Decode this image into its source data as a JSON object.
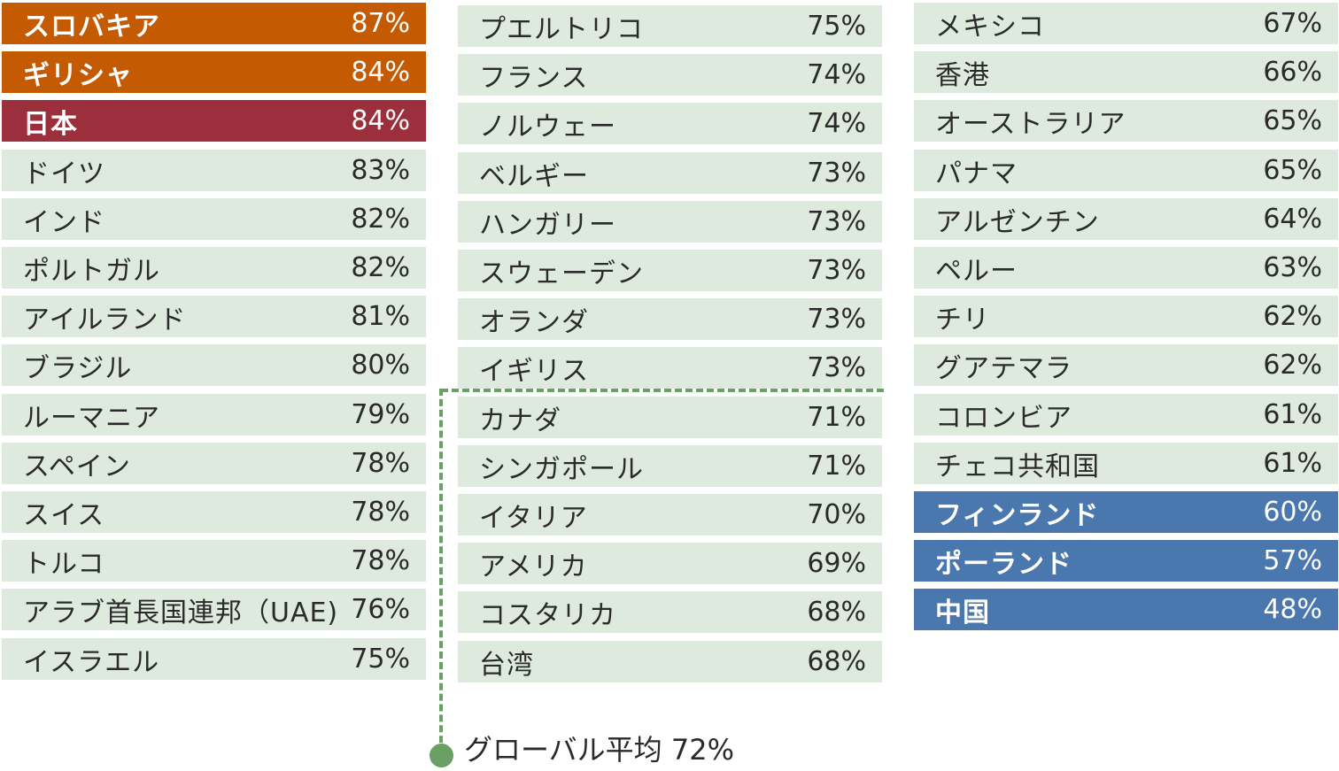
{
  "chart_data": {
    "type": "table",
    "title": "",
    "unit": "%",
    "global_average": {
      "label": "グローバル平均 72%",
      "value": 72
    },
    "colors": {
      "top_highlight": "#c45a02",
      "japan_highlight": "#9c2f3c",
      "bottom_highlight": "#4a77ad",
      "default_row": "#dfeadf",
      "average_line": "#6a9f65"
    },
    "columns": [
      {
        "rows": [
          {
            "name": "スロバキア",
            "value": 87,
            "label": "87%",
            "style": "orange"
          },
          {
            "name": "ギリシャ",
            "value": 84,
            "label": "84%",
            "style": "orange"
          },
          {
            "name": "日本",
            "value": 84,
            "label": "84%",
            "style": "crimson"
          },
          {
            "name": "ドイツ",
            "value": 83,
            "label": "83%",
            "style": "default"
          },
          {
            "name": "インド",
            "value": 82,
            "label": "82%",
            "style": "default"
          },
          {
            "name": "ポルトガル",
            "value": 82,
            "label": "82%",
            "style": "default"
          },
          {
            "name": "アイルランド",
            "value": 81,
            "label": "81%",
            "style": "default"
          },
          {
            "name": "ブラジル",
            "value": 80,
            "label": "80%",
            "style": "default"
          },
          {
            "name": "ルーマニア",
            "value": 79,
            "label": "79%",
            "style": "default"
          },
          {
            "name": "スペイン",
            "value": 78,
            "label": "78%",
            "style": "default"
          },
          {
            "name": "スイス",
            "value": 78,
            "label": "78%",
            "style": "default"
          },
          {
            "name": "トルコ",
            "value": 78,
            "label": "78%",
            "style": "default"
          },
          {
            "name": "アラブ首長国連邦（UAE)",
            "value": 76,
            "label": "76%",
            "style": "default"
          },
          {
            "name": "イスラエル",
            "value": 75,
            "label": "75%",
            "style": "default"
          }
        ]
      },
      {
        "rows": [
          {
            "name": "プエルトリコ",
            "value": 75,
            "label": "75%",
            "style": "default"
          },
          {
            "name": "フランス",
            "value": 74,
            "label": "74%",
            "style": "default"
          },
          {
            "name": "ノルウェー",
            "value": 74,
            "label": "74%",
            "style": "default"
          },
          {
            "name": "ベルギー",
            "value": 73,
            "label": "73%",
            "style": "default"
          },
          {
            "name": "ハンガリー",
            "value": 73,
            "label": "73%",
            "style": "default"
          },
          {
            "name": "スウェーデン",
            "value": 73,
            "label": "73%",
            "style": "default"
          },
          {
            "name": "オランダ",
            "value": 73,
            "label": "73%",
            "style": "default"
          },
          {
            "name": "イギリス",
            "value": 73,
            "label": "73%",
            "style": "default"
          },
          {
            "name": "カナダ",
            "value": 71,
            "label": "71%",
            "style": "default"
          },
          {
            "name": "シンガポール",
            "value": 71,
            "label": "71%",
            "style": "default"
          },
          {
            "name": "イタリア",
            "value": 70,
            "label": "70%",
            "style": "default"
          },
          {
            "name": "アメリカ",
            "value": 69,
            "label": "69%",
            "style": "default"
          },
          {
            "name": "コスタリカ",
            "value": 68,
            "label": "68%",
            "style": "default"
          },
          {
            "name": "台湾",
            "value": 68,
            "label": "68%",
            "style": "default"
          }
        ]
      },
      {
        "rows": [
          {
            "name": "メキシコ",
            "value": 67,
            "label": "67%",
            "style": "default"
          },
          {
            "name": "香港",
            "value": 66,
            "label": "66%",
            "style": "default"
          },
          {
            "name": "オーストラリア",
            "value": 65,
            "label": "65%",
            "style": "default"
          },
          {
            "name": "パナマ",
            "value": 65,
            "label": "65%",
            "style": "default"
          },
          {
            "name": "アルゼンチン",
            "value": 64,
            "label": "64%",
            "style": "default"
          },
          {
            "name": "ペルー",
            "value": 63,
            "label": "63%",
            "style": "default"
          },
          {
            "name": "チリ",
            "value": 62,
            "label": "62%",
            "style": "default"
          },
          {
            "name": "グアテマラ",
            "value": 62,
            "label": "62%",
            "style": "default"
          },
          {
            "name": "コロンビア",
            "value": 61,
            "label": "61%",
            "style": "default"
          },
          {
            "name": "チェコ共和国",
            "value": 61,
            "label": "61%",
            "style": "default"
          },
          {
            "name": "フィンランド",
            "value": 60,
            "label": "60%",
            "style": "blue"
          },
          {
            "name": "ポーランド",
            "value": 57,
            "label": "57%",
            "style": "blue"
          },
          {
            "name": "中国",
            "value": 48,
            "label": "48%",
            "style": "blue"
          }
        ]
      }
    ]
  }
}
